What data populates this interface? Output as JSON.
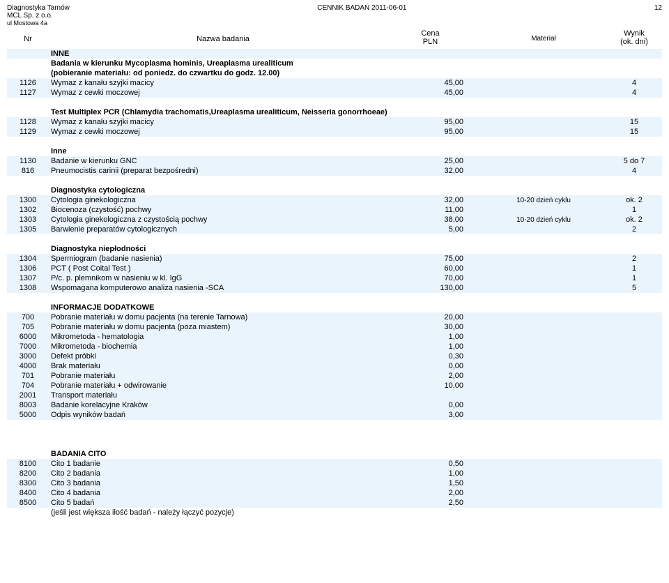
{
  "doc": {
    "company1": "Diagnostyka Tarnów",
    "company2": "MCL Sp. z o.o.",
    "company3": "ul Mostowa 4a",
    "title": "CENNIK BADAŃ  2011-06-01",
    "page": "12"
  },
  "headers": {
    "nr": "Nr",
    "name": "Nazwa badania",
    "cena1": "Cena",
    "cena2": "PLN",
    "mat": "Materiał",
    "wynik1": "Wynik",
    "wynik2": "(ok. dni)"
  },
  "sections": [
    {
      "title": "INNE",
      "subtitle": "Badania w kierunku Mycoplasma hominis, Ureaplasma urealiticum",
      "subtitle2": "(pobieranie materiału: od poniedz. do czwartku do godz. 12.00)",
      "rows": [
        {
          "nr": "1126",
          "name": "Wymaz z kanału szyjki macicy",
          "cena": "45,00",
          "mat": "",
          "wynik": "4"
        },
        {
          "nr": "1127",
          "name": "Wymaz z cewki moczowej",
          "cena": "45,00",
          "mat": "",
          "wynik": "4"
        }
      ]
    },
    {
      "subtitle": "Test Multiplex PCR (Chlamydia trachomatis,Ureaplasma urealiticum, Neisseria gonorrhoeae)",
      "rows": [
        {
          "nr": "1128",
          "name": "Wymaz z kanału szyjki macicy",
          "cena": "95,00",
          "mat": "",
          "wynik": "15"
        },
        {
          "nr": "1129",
          "name": "Wymaz z cewki moczowej",
          "cena": "95,00",
          "mat": "",
          "wynik": "15"
        }
      ]
    },
    {
      "subtitle": "Inne",
      "rows": [
        {
          "nr": "1130",
          "name": "Badanie w kierunku GNC",
          "cena": "25,00",
          "mat": "",
          "wynik": "5 do 7"
        },
        {
          "nr": "816",
          "name": "Pneumocistis carinii (preparat bezpośredni)",
          "cena": "32,00",
          "mat": "",
          "wynik": "4"
        }
      ]
    },
    {
      "subtitle": "Diagnostyka cytologiczna",
      "rows": [
        {
          "nr": "1300",
          "name": "Cytologia ginekologiczna",
          "cena": "32,00",
          "mat": "10-20 dzień cyklu",
          "wynik": "ok. 2"
        },
        {
          "nr": "1302",
          "name": "Biocenoza (czystość) pochwy",
          "cena": "11,00",
          "mat": "",
          "wynik": "1"
        },
        {
          "nr": "1303",
          "name": "Cytologia ginekologiczna z czystością pochwy",
          "cena": "38,00",
          "mat": "10-20 dzień cyklu",
          "wynik": "ok. 2"
        },
        {
          "nr": "1305",
          "name": "Barwienie preparatów cytologicznych",
          "cena": "5,00",
          "mat": "",
          "wynik": "2"
        }
      ]
    },
    {
      "subtitle": "Diagnostyka  niepłodności",
      "rows": [
        {
          "nr": "1304",
          "name": "Spermiogram (badanie nasienia)",
          "cena": "75,00",
          "mat": "",
          "wynik": "2"
        },
        {
          "nr": "1306",
          "name": "PCT ( Post Coital Test )",
          "cena": "60,00",
          "mat": "",
          "wynik": "1"
        },
        {
          "nr": "1307",
          "name": "P/c. p. plemnikom w nasieniu w kl. IgG",
          "cena": "70,00",
          "mat": "",
          "wynik": "1"
        },
        {
          "nr": "1308",
          "name": "Wspomagana komputerowo analiza nasienia -SCA",
          "cena": "130,00",
          "mat": "",
          "wynik": "5"
        }
      ]
    },
    {
      "subtitle": "INFORMACJE DODATKOWE",
      "rows": [
        {
          "nr": "700",
          "name": "Pobranie materiału w domu pacjenta (na terenie Tarnowa)",
          "cena": "20,00",
          "mat": "",
          "wynik": ""
        },
        {
          "nr": "705",
          "name": "Pobranie materiału w domu pacjenta (poza miastem)",
          "cena": "30,00",
          "mat": "",
          "wynik": ""
        },
        {
          "nr": "6000",
          "name": "Mikrometoda - hematologia",
          "cena": "1,00",
          "mat": "",
          "wynik": ""
        },
        {
          "nr": "7000",
          "name": "Mikrometoda - biochemia",
          "cena": "1,00",
          "mat": "",
          "wynik": ""
        },
        {
          "nr": "3000",
          "name": "Defekt próbki",
          "cena": "0,30",
          "mat": "",
          "wynik": ""
        },
        {
          "nr": "4000",
          "name": "Brak materiału",
          "cena": "0,00",
          "mat": "",
          "wynik": ""
        },
        {
          "nr": "701",
          "name": "Pobranie materiału",
          "cena": "2,00",
          "mat": "",
          "wynik": ""
        },
        {
          "nr": "704",
          "name": "Pobranie materiału + odwirowanie",
          "cena": "10,00",
          "mat": "",
          "wynik": ""
        },
        {
          "nr": "2001",
          "name": "Transport materiału",
          "cena": "",
          "mat": "",
          "wynik": ""
        },
        {
          "nr": "8003",
          "name": "Badanie korelacyjne Kraków",
          "cena": "0,00",
          "mat": "",
          "wynik": ""
        },
        {
          "nr": "5000",
          "name": "Odpis wyników badań",
          "cena": "3,00",
          "mat": "",
          "wynik": ""
        }
      ]
    },
    {
      "subtitle": "BADANIA CITO",
      "spacer": true,
      "rows": [
        {
          "nr": "8100",
          "name": "Cito 1 badanie",
          "cena": "0,50",
          "mat": "",
          "wynik": ""
        },
        {
          "nr": "8200",
          "name": "Cito 2 badania",
          "cena": "1,00",
          "mat": "",
          "wynik": ""
        },
        {
          "nr": "8300",
          "name": "Cito 3 badania",
          "cena": "1,50",
          "mat": "",
          "wynik": ""
        },
        {
          "nr": "8400",
          "name": "Cito 4 badania",
          "cena": "2,00",
          "mat": "",
          "wynik": ""
        },
        {
          "nr": "8500",
          "name": "Cito 5 badań",
          "cena": "2,50",
          "mat": "",
          "wynik": ""
        }
      ],
      "footnote": "(jeśli jest większa ilość badań - należy łączyć pozycje)"
    }
  ]
}
